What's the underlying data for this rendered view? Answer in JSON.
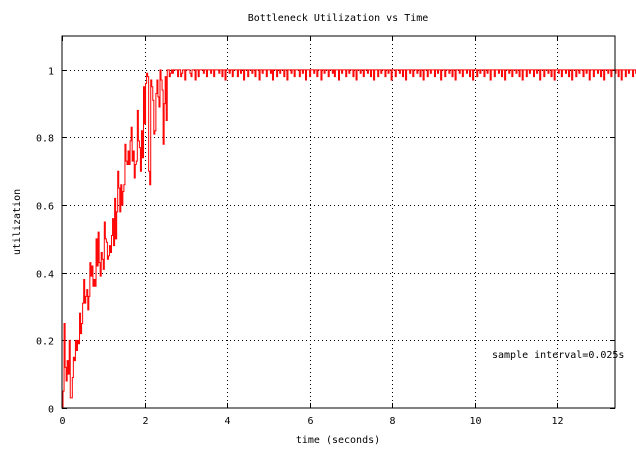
{
  "chart_data": {
    "type": "line",
    "title": "Bottleneck Utilization vs Time",
    "xlabel": "time (seconds)",
    "ylabel": "utilization",
    "xlim": [
      0,
      13.4
    ],
    "ylim": [
      0,
      1.1
    ],
    "xticks": [
      0,
      2,
      4,
      6,
      8,
      10,
      12
    ],
    "yticks": [
      0,
      0.2,
      0.4,
      0.6,
      0.8,
      1
    ],
    "grid": true,
    "line_color": "#ff0000",
    "annotation": "sample interval=0.025s",
    "sample_interval": 0.025,
    "series": [
      {
        "step": 0.025,
        "x_start": 0,
        "values": [
          0.0,
          0.05,
          0.25,
          0.12,
          0.08,
          0.14,
          0.1,
          0.2,
          0.03,
          0.03,
          0.09,
          0.15,
          0.14,
          0.2,
          0.17,
          0.2,
          0.19,
          0.28,
          0.22,
          0.25,
          0.31,
          0.38,
          0.31,
          0.33,
          0.35,
          0.29,
          0.33,
          0.43,
          0.39,
          0.42,
          0.36,
          0.38,
          0.36,
          0.5,
          0.42,
          0.52,
          0.43,
          0.39,
          0.46,
          0.44,
          0.41,
          0.55,
          0.5,
          0.49,
          0.44,
          0.45,
          0.48,
          0.46,
          0.51,
          0.56,
          0.48,
          0.62,
          0.5,
          0.58,
          0.7,
          0.65,
          0.58,
          0.66,
          0.6,
          0.64,
          0.66,
          0.78,
          0.73,
          0.72,
          0.76,
          0.72,
          0.79,
          0.83,
          0.73,
          0.76,
          0.68,
          0.72,
          0.73,
          0.88,
          0.79,
          0.77,
          0.7,
          0.82,
          0.74,
          0.95,
          0.84,
          0.96,
          0.99,
          0.98,
          0.7,
          0.66,
          0.97,
          0.95,
          0.91,
          0.81,
          0.82,
          0.93,
          0.97,
          0.92,
          0.89,
          1.0,
          0.97,
          0.94,
          0.78,
          0.9,
          0.98,
          0.85,
          1.0,
          1.0,
          0.98,
          0.99,
          1.0,
          0.99,
          1.0,
          1.0,
          1.0,
          1.0,
          0.98,
          1.0,
          1.0,
          0.98,
          0.99,
          1.0,
          1.0,
          0.97,
          1.0,
          1.0,
          1.0,
          1.0,
          0.99,
          0.98,
          1.0,
          1.0,
          1.0,
          0.97,
          1.0,
          1.0,
          0.98,
          1.0,
          1.0,
          1.0,
          1.0,
          0.99,
          1.0,
          1.0,
          0.98,
          1.0,
          1.0,
          1.0,
          0.99,
          1.0,
          1.0,
          0.98,
          1.0,
          1.0,
          1.0,
          1.0,
          0.99,
          1.0,
          1.0,
          0.98,
          1.0,
          1.0,
          0.97,
          1.0,
          1.0,
          1.0,
          0.99,
          1.0,
          1.0,
          0.98,
          1.0,
          1.0,
          1.0,
          1.0,
          0.98,
          1.0,
          1.0,
          0.99,
          1.0,
          1.0,
          0.97,
          1.0,
          1.0,
          1.0,
          0.98,
          1.0,
          1.0,
          1.0,
          0.99,
          1.0,
          1.0,
          0.98,
          1.0,
          1.0,
          1.0,
          0.97,
          1.0,
          1.0,
          0.99,
          1.0,
          1.0,
          1.0,
          0.98,
          1.0,
          1.0,
          1.0,
          0.99,
          1.0,
          0.97,
          1.0,
          1.0,
          1.0,
          0.98,
          1.0,
          1.0,
          0.99,
          1.0,
          1.0,
          1.0,
          0.98,
          1.0,
          1.0,
          0.97,
          1.0,
          1.0,
          1.0,
          0.99,
          1.0,
          1.0,
          0.98,
          1.0,
          1.0,
          1.0,
          1.0,
          0.98,
          1.0,
          1.0,
          0.99,
          1.0,
          1.0,
          0.97,
          1.0,
          1.0,
          1.0,
          0.98,
          1.0,
          1.0,
          1.0,
          0.99,
          1.0,
          1.0,
          0.98,
          1.0,
          1.0,
          1.0,
          0.97,
          1.0,
          1.0,
          0.99,
          1.0,
          1.0,
          1.0,
          0.98,
          1.0,
          1.0,
          1.0,
          0.99,
          1.0,
          0.98,
          1.0,
          1.0,
          1.0,
          0.97,
          1.0,
          1.0,
          0.99,
          1.0,
          1.0,
          1.0,
          0.98,
          1.0,
          1.0,
          0.99,
          1.0,
          1.0,
          1.0,
          0.98,
          1.0,
          1.0,
          0.97,
          1.0,
          1.0,
          1.0,
          0.99,
          1.0,
          1.0,
          0.98,
          1.0,
          1.0,
          1.0,
          0.99,
          1.0,
          1.0,
          0.98,
          1.0,
          1.0,
          0.97,
          1.0,
          1.0,
          1.0,
          0.98,
          1.0,
          1.0,
          0.99,
          1.0,
          1.0,
          1.0,
          0.98,
          1.0,
          1.0,
          0.99,
          1.0,
          1.0,
          0.97,
          1.0,
          1.0,
          1.0,
          0.98,
          1.0,
          1.0,
          1.0,
          0.99,
          1.0,
          1.0,
          0.98,
          1.0,
          1.0,
          0.97,
          1.0,
          1.0,
          1.0,
          0.99,
          1.0,
          1.0,
          0.98,
          1.0,
          1.0,
          1.0,
          0.99,
          1.0,
          1.0,
          0.98,
          1.0,
          1.0,
          0.97,
          1.0,
          1.0,
          1.0,
          0.98,
          1.0,
          1.0,
          0.99,
          1.0,
          1.0,
          1.0,
          0.98,
          1.0,
          1.0,
          0.99,
          1.0,
          1.0,
          0.97,
          1.0,
          1.0,
          1.0,
          0.98,
          1.0,
          1.0,
          1.0,
          0.99,
          1.0,
          1.0,
          0.98,
          1.0,
          1.0,
          0.97,
          1.0,
          1.0,
          1.0,
          0.99,
          1.0,
          1.0,
          0.98,
          1.0,
          1.0,
          1.0,
          0.99,
          1.0,
          1.0,
          0.98,
          1.0,
          1.0,
          0.97,
          1.0,
          1.0,
          1.0,
          0.98,
          1.0,
          1.0,
          0.99,
          1.0,
          1.0,
          1.0,
          0.98,
          1.0,
          1.0,
          0.99,
          1.0,
          1.0,
          0.97,
          1.0,
          1.0,
          1.0,
          0.98,
          1.0,
          1.0,
          1.0,
          0.99,
          1.0,
          1.0,
          0.98,
          1.0,
          1.0,
          0.97,
          1.0,
          1.0,
          1.0,
          0.99,
          1.0,
          1.0,
          0.98,
          1.0,
          1.0,
          1.0,
          0.99,
          1.0,
          1.0,
          0.98,
          1.0,
          1.0,
          0.97,
          1.0,
          1.0,
          1.0,
          0.98,
          1.0,
          1.0,
          0.99,
          1.0,
          1.0,
          1.0,
          0.98,
          1.0,
          1.0,
          0.99,
          1.0,
          1.0,
          0.97,
          1.0,
          1.0,
          1.0,
          0.98,
          1.0,
          1.0,
          1.0,
          0.99,
          1.0,
          1.0,
          0.98,
          1.0,
          1.0,
          0.97,
          1.0,
          1.0,
          1.0,
          0.99,
          1.0,
          1.0,
          0.98,
          1.0,
          1.0,
          1.0,
          0.99,
          1.0,
          1.0,
          0.98,
          1.0,
          1.0,
          0.97,
          1.0,
          1.0,
          1.0,
          0.98,
          1.0,
          1.0,
          0.99,
          1.0,
          1.0,
          1.0,
          0.98,
          1.0,
          1.0,
          0.99,
          1.0,
          1.0,
          0.97,
          1.0,
          1.0,
          1.0,
          0.98,
          1.0,
          1.0,
          1.0,
          0.99,
          1.0,
          1.0,
          0.98,
          1.0,
          1.0,
          0.97,
          1.0,
          1.0,
          1.0,
          0.99,
          1.0,
          1.0,
          0.98,
          1.0,
          1.0,
          1.0,
          0.99,
          1.0,
          1.0,
          0.98,
          1.0,
          1.0,
          0.97,
          1.0,
          1.0,
          1.0,
          0.98,
          1.0,
          1.0,
          0.99,
          1.0,
          1.0,
          1.0,
          0.98,
          1.0,
          1.0,
          0.99,
          1.0,
          0.97,
          1.0,
          1.0,
          1.0,
          0.98,
          1.0
        ]
      }
    ]
  }
}
